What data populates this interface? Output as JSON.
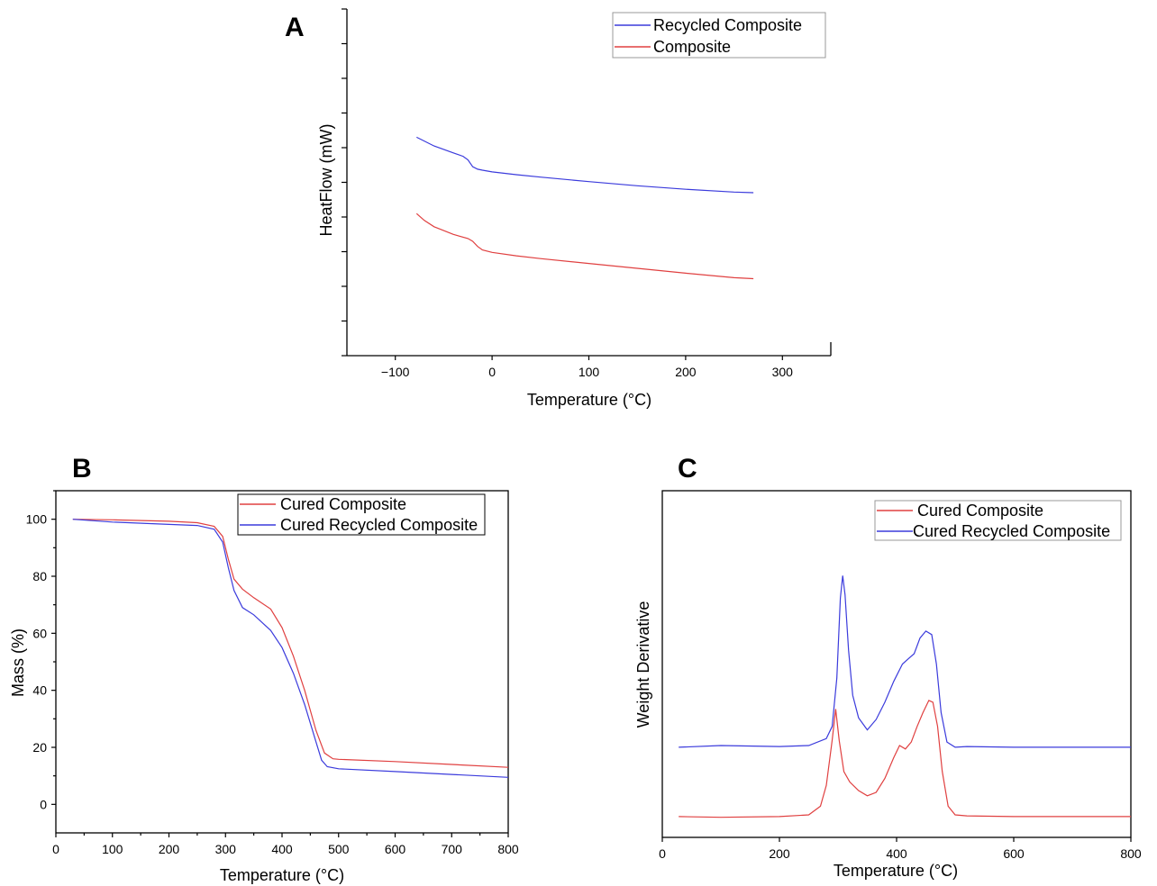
{
  "chart_data": [
    {
      "panel": "A",
      "type": "line",
      "xlabel": "Temperature (°C)",
      "ylabel": "HeatFlow (mW)",
      "xlim": [
        -150,
        350
      ],
      "xticks": [
        "−100",
        "0",
        "100",
        "200",
        "300"
      ],
      "yticks_unlabeled": true,
      "ylim": [
        0,
        10
      ],
      "grid": false,
      "legend_position": "top-right",
      "series": [
        {
          "name": "Recycled Composite",
          "color": "#3b3bdc",
          "x": [
            -78,
            -60,
            -40,
            -30,
            -25,
            -20,
            -15,
            -10,
            0,
            25,
            50,
            100,
            150,
            200,
            250,
            270
          ],
          "y": [
            6.3,
            6.05,
            5.85,
            5.75,
            5.65,
            5.45,
            5.38,
            5.35,
            5.3,
            5.22,
            5.15,
            5.02,
            4.9,
            4.8,
            4.72,
            4.7
          ]
        },
        {
          "name": "Composite",
          "color": "#e04040",
          "x": [
            -78,
            -70,
            -60,
            -40,
            -25,
            -20,
            -15,
            -10,
            0,
            25,
            50,
            100,
            150,
            200,
            250,
            270
          ],
          "y": [
            4.1,
            3.9,
            3.72,
            3.5,
            3.38,
            3.3,
            3.15,
            3.05,
            2.98,
            2.88,
            2.8,
            2.66,
            2.52,
            2.38,
            2.25,
            2.22
          ]
        }
      ]
    },
    {
      "panel": "B",
      "type": "line",
      "xlabel": "Temperature (°C)",
      "ylabel": "Mass (%)",
      "xlim": [
        0,
        800
      ],
      "ylim": [
        -10,
        110
      ],
      "xticks": [
        0,
        100,
        200,
        300,
        400,
        500,
        600,
        700,
        800
      ],
      "yticks": [
        0,
        20,
        40,
        60,
        80,
        100
      ],
      "grid": false,
      "legend_position": "top-right",
      "series": [
        {
          "name": "Cured Composite",
          "color": "#e04040",
          "x": [
            30,
            100,
            200,
            250,
            280,
            295,
            305,
            315,
            330,
            350,
            380,
            400,
            420,
            440,
            460,
            475,
            490,
            500,
            600,
            700,
            800
          ],
          "y": [
            100,
            99.8,
            99.3,
            98.8,
            97.5,
            94,
            86,
            79,
            75.5,
            72.5,
            68.5,
            62,
            52,
            40,
            26,
            18,
            16,
            15.8,
            15,
            14,
            13
          ]
        },
        {
          "name": "Cured Recycled Composite",
          "color": "#3b3bdc",
          "x": [
            30,
            100,
            200,
            250,
            280,
            295,
            305,
            315,
            330,
            350,
            380,
            400,
            420,
            440,
            460,
            470,
            480,
            500,
            600,
            700,
            800
          ],
          "y": [
            100,
            99,
            98.2,
            97.8,
            96.5,
            92,
            83,
            75,
            69,
            66.5,
            61,
            55,
            46,
            35,
            22,
            15.5,
            13.2,
            12.5,
            11.5,
            10.5,
            9.5
          ]
        }
      ]
    },
    {
      "panel": "C",
      "type": "line",
      "xlabel": "Temperature (°C)",
      "ylabel": "Weight Derivative",
      "xlim": [
        0,
        800
      ],
      "ylim": [
        0,
        10
      ],
      "xticks": [
        0,
        200,
        400,
        600,
        800
      ],
      "yticks_unlabeled": true,
      "grid": false,
      "legend_position": "top-right",
      "series": [
        {
          "name": "Cured Composite",
          "color": "#e04040",
          "x": [
            28,
            100,
            200,
            250,
            270,
            280,
            290,
            296,
            302,
            310,
            320,
            335,
            350,
            365,
            380,
            395,
            405,
            415,
            425,
            435,
            445,
            455,
            462,
            470,
            478,
            488,
            500,
            520,
            600,
            700,
            800
          ],
          "y": [
            0.6,
            0.58,
            0.6,
            0.65,
            0.9,
            1.5,
            2.8,
            3.7,
            2.8,
            1.9,
            1.6,
            1.35,
            1.2,
            1.3,
            1.7,
            2.3,
            2.65,
            2.55,
            2.75,
            3.2,
            3.6,
            3.95,
            3.9,
            3.2,
            1.9,
            0.9,
            0.65,
            0.62,
            0.6,
            0.6,
            0.6
          ]
        },
        {
          "name": "Cured Recycled Composite",
          "color": "#3b3bdc",
          "x": [
            28,
            100,
            200,
            250,
            280,
            290,
            298,
            304,
            308,
            312,
            318,
            325,
            335,
            350,
            365,
            380,
            395,
            410,
            420,
            430,
            440,
            450,
            460,
            468,
            476,
            486,
            500,
            520,
            600,
            700,
            800
          ],
          "y": [
            2.6,
            2.65,
            2.62,
            2.65,
            2.85,
            3.2,
            4.6,
            6.9,
            7.55,
            7.0,
            5.4,
            4.1,
            3.45,
            3.1,
            3.4,
            3.9,
            4.5,
            5.0,
            5.15,
            5.3,
            5.75,
            5.95,
            5.85,
            5.0,
            3.6,
            2.75,
            2.6,
            2.62,
            2.6,
            2.6,
            2.6
          ]
        }
      ]
    }
  ]
}
